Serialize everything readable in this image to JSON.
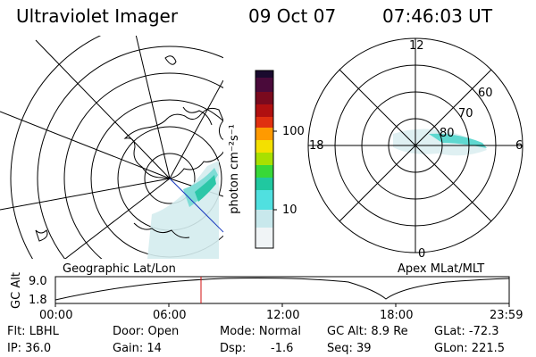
{
  "header": {
    "title": "Ultraviolet Imager",
    "date": "09 Oct 07",
    "time": "07:46:03 UT"
  },
  "colorbar": {
    "unit_label": "photon cm⁻²s⁻¹",
    "ticks": [
      "100",
      "10"
    ],
    "colors": [
      "#1a0a2e",
      "#4a0a3a",
      "#7a0a1e",
      "#b01010",
      "#e03010",
      "#ff9a00",
      "#f4e000",
      "#a8e000",
      "#38d838",
      "#20c8a0",
      "#50e0e0",
      "#c8e8ec",
      "#f0f4f6"
    ]
  },
  "polar_left": {
    "caption": "Geographic Lat/Lon"
  },
  "polar_right": {
    "caption": "Apex MLat/MLT",
    "mlt_labels": {
      "top": "12",
      "left": "18",
      "right": "6",
      "bottom": "0"
    },
    "lat_labels": [
      "60",
      "70",
      "80"
    ]
  },
  "timeline": {
    "axis_label": "GC Alt",
    "y_ticks": [
      "9.0",
      "1.8"
    ],
    "x_ticks": [
      "00:00",
      "06:00",
      "12:00",
      "18:00",
      "23:59"
    ],
    "marker_color": "#d01010"
  },
  "status": {
    "flt": "Flt: LBHL",
    "ip": "IP: 36.0",
    "door": "Door: Open",
    "gain": "Gain: 14",
    "mode": "Mode: Normal",
    "dsp": "Dsp:",
    "dsp_value": "-1.6",
    "gcalt": "GC Alt: 8.9 Re",
    "seq": "Seq: 39",
    "glat": "GLat: -72.3",
    "glon": "GLon: 221.5"
  }
}
